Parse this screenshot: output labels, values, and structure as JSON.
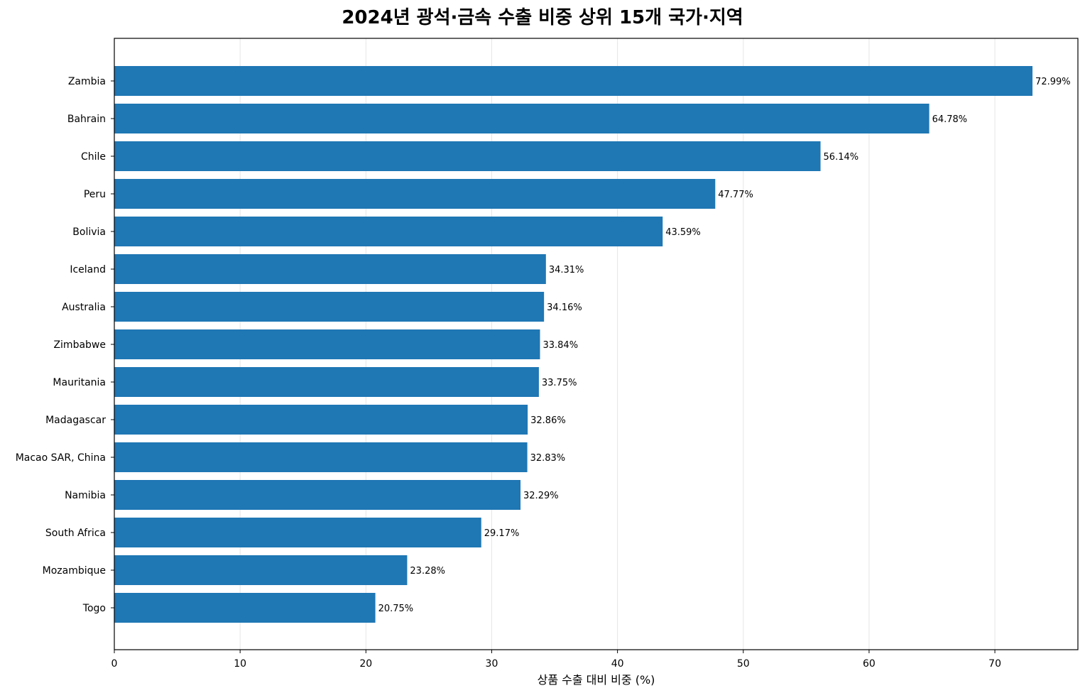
{
  "chart_data": {
    "type": "bar",
    "orientation": "horizontal",
    "title": "2024년 광석·금속 수출 비중 상위 15개 국가·지역",
    "xlabel": "상품 수출 대비 비중 (%)",
    "ylabel": "",
    "xlim": [
      0,
      76.6
    ],
    "xticks": [
      0,
      10,
      20,
      30,
      40,
      50,
      60,
      70
    ],
    "grid": "vertical",
    "bar_color": "#1f77b4",
    "label_suffix": "%",
    "categories": [
      "Zambia",
      "Bahrain",
      "Chile",
      "Peru",
      "Bolivia",
      "Iceland",
      "Australia",
      "Zimbabwe",
      "Mauritania",
      "Madagascar",
      "Macao SAR, China",
      "Namibia",
      "South Africa",
      "Mozambique",
      "Togo"
    ],
    "values": [
      72.99,
      64.78,
      56.14,
      47.77,
      43.59,
      34.31,
      34.16,
      33.84,
      33.75,
      32.86,
      32.83,
      32.29,
      29.17,
      23.28,
      20.75
    ],
    "data_labels": [
      "72.99%",
      "64.78%",
      "56.14%",
      "47.77%",
      "43.59%",
      "34.31%",
      "34.16%",
      "33.84%",
      "33.75%",
      "32.86%",
      "32.83%",
      "32.29%",
      "29.17%",
      "23.28%",
      "20.75%"
    ]
  }
}
